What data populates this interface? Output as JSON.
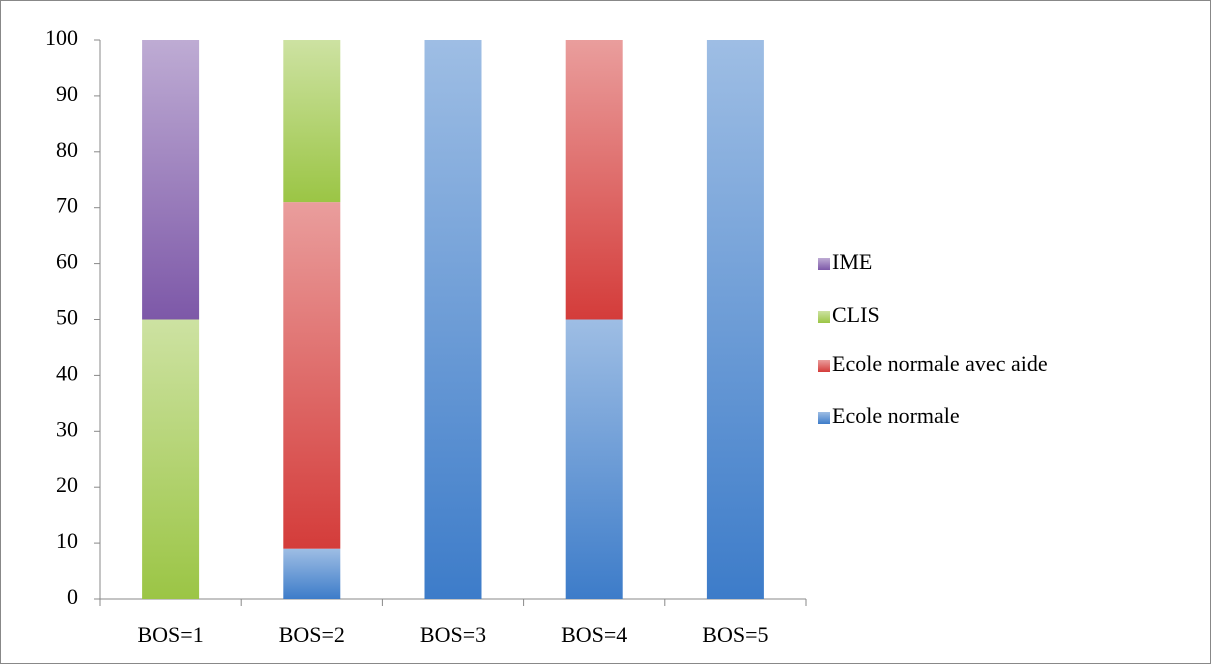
{
  "chart_data": {
    "type": "stacked_bar",
    "categories": [
      "BOS=1",
      "BOS=2",
      "BOS=3",
      "BOS=4",
      "BOS=5"
    ],
    "series": [
      {
        "name": "Ecole normale",
        "color": "#3d7cc9",
        "values": [
          0,
          9,
          100,
          50,
          100
        ]
      },
      {
        "name": "Ecole normale avec aide",
        "color": "#d43c3a",
        "values": [
          0,
          62,
          0,
          50,
          0
        ]
      },
      {
        "name": "CLIS",
        "color": "#9bc545",
        "values": [
          50,
          29,
          0,
          0,
          0
        ]
      },
      {
        "name": "IME",
        "color": "#7d58a8",
        "values": [
          50,
          0,
          0,
          0,
          0
        ]
      }
    ],
    "ylim": [
      0,
      100
    ],
    "yticks": [
      0,
      10,
      20,
      30,
      40,
      50,
      60,
      70,
      80,
      90,
      100
    ],
    "legend": "right"
  }
}
